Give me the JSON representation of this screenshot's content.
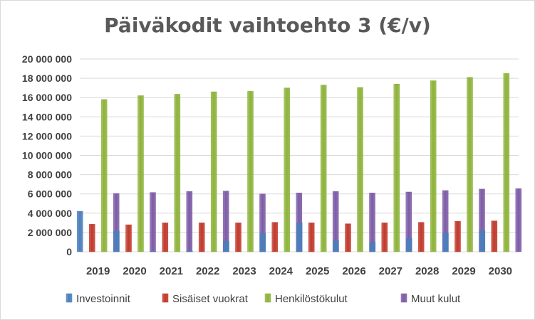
{
  "colors": {
    "Investoinnit": "#4a7ebb",
    "Sisäiset vuokrat": "#c0392b",
    "Henkilöstökulut": "#8db33a",
    "Muut kulut": "#7d5ba6",
    "grid": "#d9d9d9",
    "text": "#404040"
  },
  "chart_data": {
    "type": "bar",
    "title": "Päiväkodit vaihtoehto 3 (€/v)",
    "xlabel": "",
    "ylabel": "",
    "ylim": [
      0,
      20000000
    ],
    "yticks": [
      0,
      2000000,
      4000000,
      6000000,
      8000000,
      10000000,
      12000000,
      14000000,
      16000000,
      18000000,
      20000000
    ],
    "ytick_labels": [
      "0",
      "2 000 000",
      "4 000 000",
      "6 000 000",
      "8 000 000",
      "10 000 000",
      "12 000 000",
      "14 000 000",
      "16 000 000",
      "18 000 000",
      "20 000 000"
    ],
    "grid": true,
    "legend_position": "bottom",
    "categories": [
      "2019",
      "2020",
      "2021",
      "2022",
      "2023",
      "2024",
      "2025",
      "2026",
      "2027",
      "2028",
      "2029",
      "2030"
    ],
    "series": [
      {
        "name": "Investoinnit",
        "values": [
          4200000,
          2150000,
          50000,
          100000,
          1100000,
          1900000,
          3000000,
          1150000,
          1000000,
          1400000,
          1900000,
          2200000
        ]
      },
      {
        "name": "Sisäiset vuokrat",
        "values": [
          2850000,
          2800000,
          3000000,
          3000000,
          3000000,
          3050000,
          3000000,
          2900000,
          3000000,
          3050000,
          3150000,
          3200000
        ]
      },
      {
        "name": "Henkilöstökulut",
        "values": [
          15800000,
          16200000,
          16350000,
          16600000,
          16650000,
          17000000,
          17300000,
          17050000,
          17400000,
          17750000,
          18100000,
          18500000
        ]
      },
      {
        "name": "Muut kulut",
        "values": [
          6050000,
          6150000,
          6250000,
          6300000,
          6000000,
          6100000,
          6250000,
          6100000,
          6200000,
          6350000,
          6500000,
          6550000
        ]
      }
    ]
  }
}
